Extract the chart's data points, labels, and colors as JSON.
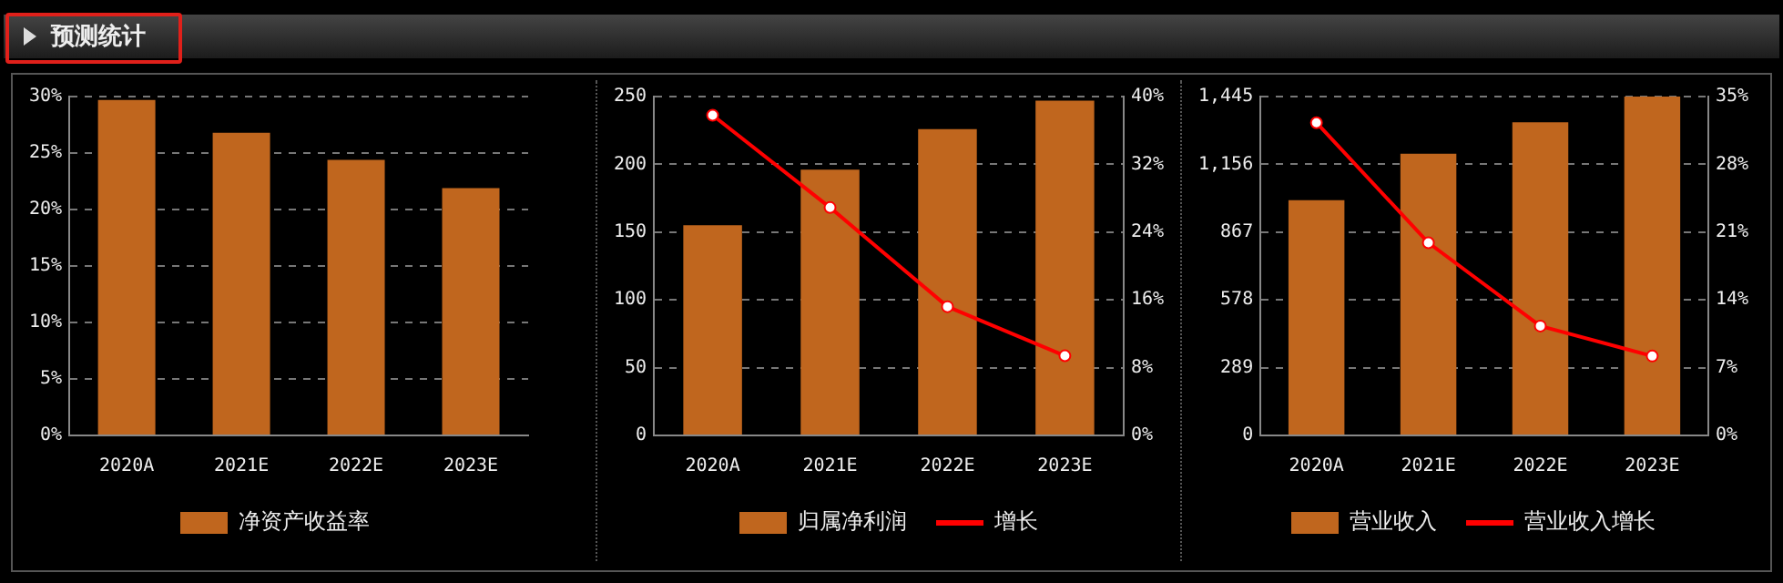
{
  "chart_data": [
    {
      "type": "bar",
      "title": "预测统计",
      "categories": [
        "2020A",
        "2021E",
        "2022E",
        "2023E"
      ],
      "series": [
        {
          "name": "净资产收益率",
          "color": "#c0661e",
          "values": [
            29.7,
            26.8,
            24.4,
            21.9
          ]
        }
      ],
      "ylim": [
        0,
        30
      ],
      "yticks": [
        {
          "value": 0,
          "label": "0%"
        },
        {
          "value": 5,
          "label": "5%"
        },
        {
          "value": 10,
          "label": "10%"
        },
        {
          "value": 15,
          "label": "15%"
        },
        {
          "value": 20,
          "label": "20%"
        },
        {
          "value": 25,
          "label": "25%"
        },
        {
          "value": 30,
          "label": "30%"
        }
      ],
      "grid": "y",
      "legend": "bottom"
    },
    {
      "type": "bar",
      "categories": [
        "2020A",
        "2021E",
        "2022E",
        "2023E"
      ],
      "series": [
        {
          "name": "归属净利润",
          "color": "#c0661e",
          "values": [
            155,
            196,
            226,
            247
          ]
        },
        {
          "name": "增长",
          "type": "line",
          "axis": "y2",
          "color": "#ff0000",
          "values": [
            37.8,
            26.9,
            15.2,
            9.4
          ]
        }
      ],
      "ylim": [
        0,
        250
      ],
      "yticks": [
        0,
        50,
        100,
        150,
        200,
        250
      ],
      "y2lim": [
        0,
        40
      ],
      "y2ticks": [
        {
          "value": 0,
          "label": "0%"
        },
        {
          "value": 8,
          "label": "8%"
        },
        {
          "value": 16,
          "label": "16%"
        },
        {
          "value": 24,
          "label": "24%"
        },
        {
          "value": 32,
          "label": "32%"
        },
        {
          "value": 40,
          "label": "40%"
        }
      ],
      "grid": "y",
      "legend": "bottom",
      "marker": "circle"
    },
    {
      "type": "bar",
      "categories": [
        "2020A",
        "2021E",
        "2022E",
        "2023E"
      ],
      "series": [
        {
          "name": "营业收入",
          "color": "#c0661e",
          "values": [
            1003,
            1201,
            1335,
            1445
          ]
        },
        {
          "name": "营业收入增长",
          "type": "line",
          "axis": "y2",
          "color": "#ff0000",
          "values": [
            32.3,
            19.9,
            11.3,
            8.2
          ]
        }
      ],
      "ylim": [
        0,
        1445
      ],
      "yticks": [
        0,
        289,
        578,
        867,
        {
          "value": 1156,
          "label": "1,156"
        },
        {
          "value": 1445,
          "label": "1,445"
        }
      ],
      "y2lim": [
        0,
        35
      ],
      "y2ticks": [
        {
          "value": 0,
          "label": "0%"
        },
        {
          "value": 7,
          "label": "7%"
        },
        {
          "value": 14,
          "label": "14%"
        },
        {
          "value": 21,
          "label": "21%"
        },
        {
          "value": 28,
          "label": "28%"
        },
        {
          "value": 35,
          "label": "35%"
        }
      ],
      "grid": "y",
      "legend": "bottom",
      "marker": "circle"
    }
  ]
}
